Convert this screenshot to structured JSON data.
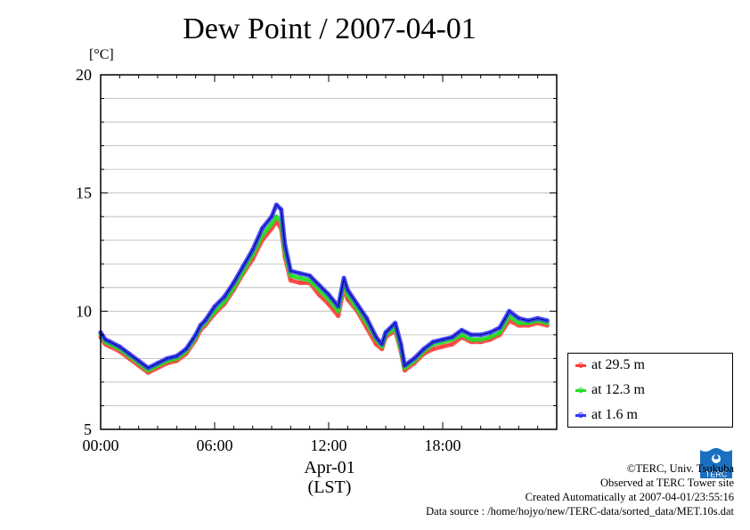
{
  "chart_data": {
    "type": "line",
    "title": "Dew Point / 2007-04-01",
    "ylabel": "[°C]",
    "ylim": [
      5,
      20
    ],
    "yticks": [
      5,
      10,
      15,
      20
    ],
    "xlim": [
      0,
      24
    ],
    "x_tick_labels": [
      "00:00",
      "06:00",
      "12:00",
      "18:00"
    ],
    "x_tick_hours": [
      0,
      6,
      12,
      18
    ],
    "x_date_label": "Apr-01",
    "x_tz_label": "(LST)",
    "grid": true,
    "legend_position": "right",
    "x": [
      0,
      0.25,
      0.5,
      1,
      1.5,
      2,
      2.5,
      3,
      3.5,
      4,
      4.5,
      5,
      5.25,
      5.5,
      6,
      6.5,
      7,
      7.5,
      8,
      8.5,
      9,
      9.25,
      9.5,
      9.7,
      10,
      10.5,
      11,
      11.5,
      12,
      12.5,
      12.8,
      13,
      13.5,
      14,
      14.5,
      14.8,
      15,
      15.5,
      15.8,
      16,
      16.5,
      17,
      17.5,
      18,
      18.5,
      19,
      19.5,
      20,
      20.5,
      21,
      21.5,
      22,
      22.5,
      23,
      23.5
    ],
    "series": [
      {
        "name": "at 29.5 m",
        "color": "#ff3b3b",
        "values": [
          8.9,
          8.6,
          8.5,
          8.3,
          8.0,
          7.7,
          7.4,
          7.6,
          7.8,
          7.9,
          8.2,
          8.8,
          9.2,
          9.4,
          9.9,
          10.3,
          10.9,
          11.6,
          12.2,
          13.0,
          13.5,
          13.8,
          13.5,
          12.3,
          11.3,
          11.2,
          11.2,
          10.7,
          10.3,
          9.8,
          11.0,
          10.5,
          10.0,
          9.3,
          8.6,
          8.4,
          8.9,
          9.2,
          8.3,
          7.5,
          7.8,
          8.2,
          8.4,
          8.5,
          8.6,
          8.9,
          8.7,
          8.7,
          8.8,
          9.0,
          9.6,
          9.4,
          9.4,
          9.5,
          9.4
        ]
      },
      {
        "name": "at 12.3 m",
        "color": "#22dd22",
        "values": [
          9.0,
          8.7,
          8.6,
          8.4,
          8.1,
          7.8,
          7.5,
          7.7,
          7.9,
          8.0,
          8.3,
          8.9,
          9.3,
          9.5,
          10.0,
          10.4,
          11.0,
          11.7,
          12.4,
          13.2,
          13.7,
          14.0,
          13.8,
          12.5,
          11.5,
          11.4,
          11.3,
          10.9,
          10.5,
          10.0,
          11.2,
          10.7,
          10.1,
          9.5,
          8.8,
          8.5,
          9.0,
          9.3,
          8.4,
          7.6,
          7.9,
          8.3,
          8.6,
          8.7,
          8.8,
          9.0,
          8.8,
          8.8,
          8.9,
          9.1,
          9.8,
          9.5,
          9.5,
          9.6,
          9.5
        ]
      },
      {
        "name": "at 1.6 m",
        "color": "#3333ff",
        "values": [
          9.1,
          8.8,
          8.7,
          8.5,
          8.2,
          7.9,
          7.6,
          7.8,
          8.0,
          8.1,
          8.4,
          9.0,
          9.4,
          9.6,
          10.2,
          10.6,
          11.2,
          11.9,
          12.6,
          13.5,
          14.0,
          14.5,
          14.3,
          12.8,
          11.7,
          11.6,
          11.5,
          11.1,
          10.7,
          10.2,
          11.4,
          10.9,
          10.3,
          9.7,
          8.9,
          8.6,
          9.1,
          9.5,
          8.6,
          7.7,
          8.0,
          8.4,
          8.7,
          8.8,
          8.9,
          9.2,
          9.0,
          9.0,
          9.1,
          9.3,
          10.0,
          9.7,
          9.6,
          9.7,
          9.6
        ]
      }
    ]
  },
  "legend": {
    "items": [
      {
        "label": "at 29.5 m",
        "color": "#ff3b3b"
      },
      {
        "label": "at 12.3 m",
        "color": "#22dd22"
      },
      {
        "label": "at 1.6 m",
        "color": "#3333ff"
      }
    ]
  },
  "credits": {
    "line1": "©TERC, Univ. Tsukuba",
    "line2": "Observed at TERC Tower site",
    "line3": "Created Automatically at 2007-04-01/23:55:16",
    "line4": "Data source : /home/hojyo/new/TERC-data/sorted_data/MET.10s.dat"
  },
  "logo": {
    "text": "TERC",
    "color": "#1a6fc0"
  }
}
